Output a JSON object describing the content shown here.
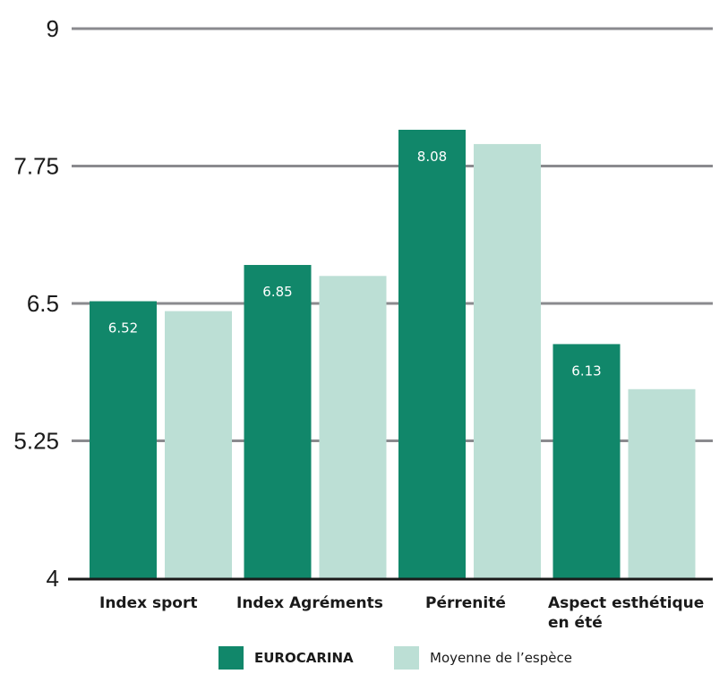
{
  "chart_data": {
    "type": "bar",
    "title": "",
    "xlabel": "",
    "ylabel": "",
    "ylim": [
      4,
      9
    ],
    "yticks": [
      "4",
      "5.25",
      "6.5",
      "7.75",
      "9"
    ],
    "categories": [
      [
        "Index sport"
      ],
      [
        "Index Agréments"
      ],
      [
        "Pérrenité"
      ],
      [
        "Aspect esthétique",
        "en été"
      ]
    ],
    "series": [
      {
        "name": "EUROCARINA",
        "color": "#11876a",
        "values": [
          6.52,
          6.85,
          8.08,
          6.13
        ],
        "labels": [
          "6.52",
          "6.85",
          "8.08",
          "6.13"
        ]
      },
      {
        "name": "Moyenne de l’espèce",
        "color": "#bcdfd5",
        "values": [
          6.43,
          6.75,
          7.95,
          5.72
        ]
      }
    ],
    "grid": true,
    "legend_position": "bottom"
  }
}
